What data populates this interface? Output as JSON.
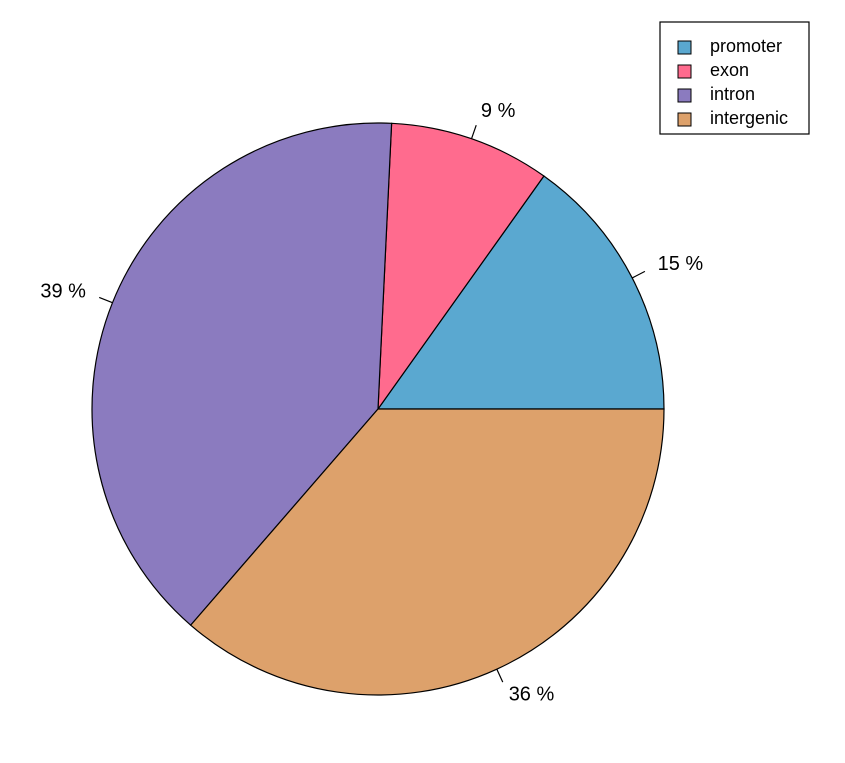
{
  "chart_data": {
    "type": "pie",
    "categories": [
      "promoter",
      "exon",
      "intron",
      "intergenic"
    ],
    "values": [
      15,
      9,
      39,
      36
    ],
    "value_labels": [
      "15 %",
      "9 %",
      "39 %",
      "36 %"
    ],
    "colors": [
      "#5aa8d0",
      "#ff6b8e",
      "#8b7bbf",
      "#dda16b"
    ],
    "legend": "topright"
  }
}
